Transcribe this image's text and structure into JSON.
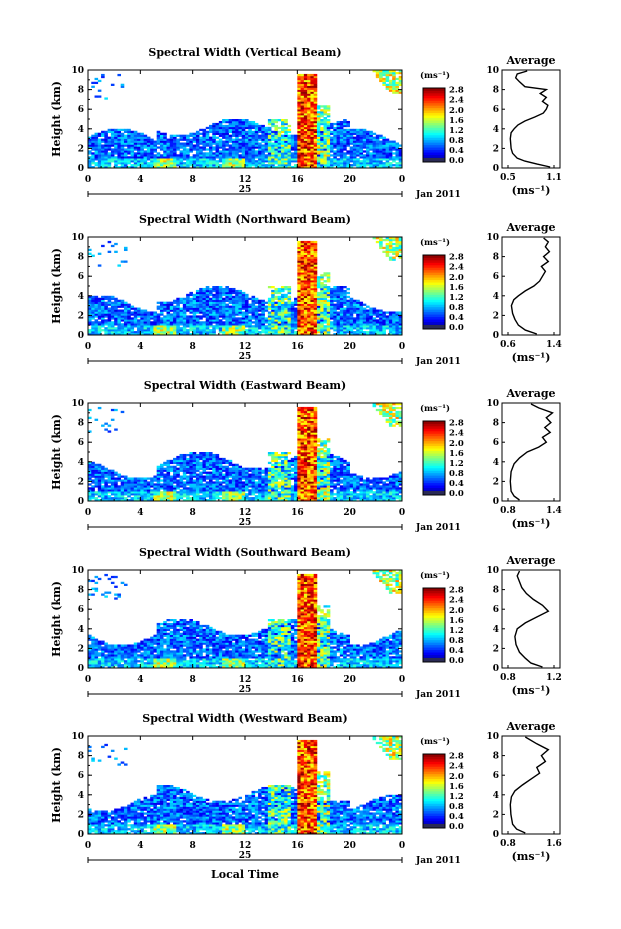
{
  "chart_data": [
    {
      "type": "heatmap",
      "title": "Spectral Width (Vertical Beam)",
      "ylabel": "Height (km)",
      "xticks": [
        "0",
        "4",
        "8",
        "12",
        "16",
        "20",
        "0"
      ],
      "yticks": [
        "0",
        "2",
        "4",
        "6",
        "8",
        "10"
      ],
      "ylim": [
        0,
        10
      ],
      "date_label": "25",
      "month_label": "Jan 2011",
      "colorbar": {
        "unit": "(ms⁻¹)",
        "ticks": [
          "0.0",
          "0.4",
          "0.8",
          "1.2",
          "1.6",
          "2.0",
          "2.4",
          "2.8"
        ]
      },
      "average": {
        "title": "Average",
        "xlabel": "(ms⁻¹)",
        "xticks": [
          "0.5",
          "1.1"
        ],
        "xlim": [
          0.5,
          1.1
        ],
        "yticks": [
          "0",
          "2",
          "4",
          "6",
          "8",
          "10"
        ],
        "profile": [
          [
            1.05,
            0.1
          ],
          [
            0.88,
            0.4
          ],
          [
            0.72,
            0.7
          ],
          [
            0.62,
            1.0
          ],
          [
            0.56,
            1.5
          ],
          [
            0.54,
            2.0
          ],
          [
            0.53,
            3.0
          ],
          [
            0.54,
            3.6
          ],
          [
            0.58,
            4.0
          ],
          [
            0.63,
            4.4
          ],
          [
            0.72,
            4.8
          ],
          [
            0.85,
            5.2
          ],
          [
            0.96,
            5.6
          ],
          [
            1.0,
            6.0
          ],
          [
            1.02,
            6.4
          ],
          [
            0.95,
            6.8
          ],
          [
            1.0,
            7.2
          ],
          [
            0.92,
            7.6
          ],
          [
            1.0,
            8.0
          ],
          [
            0.72,
            8.3
          ],
          [
            0.65,
            8.8
          ],
          [
            0.6,
            9.2
          ],
          [
            0.62,
            9.6
          ],
          [
            0.75,
            9.9
          ]
        ]
      }
    },
    {
      "type": "heatmap",
      "title": "Spectral Width (Northward Beam)",
      "ylabel": "Height (km)",
      "xticks": [
        "0",
        "4",
        "8",
        "12",
        "16",
        "20",
        "0"
      ],
      "yticks": [
        "0",
        "2",
        "4",
        "6",
        "8",
        "10"
      ],
      "ylim": [
        0,
        10
      ],
      "date_label": "25",
      "month_label": "Jan 2011",
      "colorbar": {
        "unit": "(ms⁻¹)",
        "ticks": [
          "0.0",
          "0.4",
          "0.8",
          "1.2",
          "1.6",
          "2.0",
          "2.4",
          "2.8"
        ]
      },
      "average": {
        "title": "Average",
        "xlabel": "(ms⁻¹)",
        "xticks": [
          "0.6",
          "1.4"
        ],
        "xlim": [
          0.6,
          1.4
        ],
        "yticks": [
          "0",
          "2",
          "4",
          "6",
          "8",
          "10"
        ],
        "profile": [
          [
            1.1,
            0.1
          ],
          [
            0.9,
            0.5
          ],
          [
            0.78,
            1.0
          ],
          [
            0.72,
            1.6
          ],
          [
            0.68,
            2.2
          ],
          [
            0.66,
            3.0
          ],
          [
            0.7,
            3.6
          ],
          [
            0.78,
            4.0
          ],
          [
            0.9,
            4.5
          ],
          [
            1.05,
            5.0
          ],
          [
            1.15,
            5.5
          ],
          [
            1.2,
            6.0
          ],
          [
            1.25,
            6.5
          ],
          [
            1.18,
            7.0
          ],
          [
            1.3,
            7.5
          ],
          [
            1.22,
            8.0
          ],
          [
            1.32,
            8.5
          ],
          [
            1.25,
            9.0
          ],
          [
            1.3,
            9.5
          ],
          [
            1.22,
            9.9
          ]
        ]
      }
    },
    {
      "type": "heatmap",
      "title": "Spectral Width (Eastward Beam)",
      "ylabel": "Height (km)",
      "xticks": [
        "0",
        "4",
        "8",
        "12",
        "16",
        "20",
        "0"
      ],
      "yticks": [
        "0",
        "2",
        "4",
        "6",
        "8",
        "10"
      ],
      "ylim": [
        0,
        10
      ],
      "date_label": "25",
      "month_label": "Jan 2011",
      "colorbar": {
        "unit": "(ms⁻¹)",
        "ticks": [
          "0.0",
          "0.4",
          "0.8",
          "1.2",
          "1.6",
          "2.0",
          "2.4",
          "2.8"
        ]
      },
      "average": {
        "title": "Average",
        "xlabel": "(ms⁻¹)",
        "xticks": [
          "0.8",
          "1.4"
        ],
        "xlim": [
          0.8,
          1.4
        ],
        "yticks": [
          "0",
          "2",
          "4",
          "6",
          "8",
          "10"
        ],
        "profile": [
          [
            0.95,
            0.1
          ],
          [
            0.88,
            0.5
          ],
          [
            0.84,
            1.0
          ],
          [
            0.83,
            2.0
          ],
          [
            0.84,
            3.0
          ],
          [
            0.88,
            3.8
          ],
          [
            0.95,
            4.4
          ],
          [
            1.05,
            5.0
          ],
          [
            1.2,
            5.5
          ],
          [
            1.3,
            6.0
          ],
          [
            1.25,
            6.5
          ],
          [
            1.35,
            7.0
          ],
          [
            1.28,
            7.5
          ],
          [
            1.36,
            8.0
          ],
          [
            1.3,
            8.5
          ],
          [
            1.38,
            9.0
          ],
          [
            1.2,
            9.5
          ],
          [
            1.1,
            9.9
          ]
        ]
      }
    },
    {
      "type": "heatmap",
      "title": "Spectral Width (Southward Beam)",
      "ylabel": "Height (km)",
      "xticks": [
        "0",
        "4",
        "8",
        "12",
        "16",
        "20",
        "0"
      ],
      "yticks": [
        "0",
        "2",
        "4",
        "6",
        "8",
        "10"
      ],
      "ylim": [
        0,
        10
      ],
      "date_label": "25",
      "month_label": "Jan 2011",
      "colorbar": {
        "unit": "(ms⁻¹)",
        "ticks": [
          "0.0",
          "0.4",
          "0.8",
          "1.2",
          "1.6",
          "2.0",
          "2.4",
          "2.8"
        ]
      },
      "average": {
        "title": "Average",
        "xlabel": "(ms⁻¹)",
        "xticks": [
          "0.8",
          "1.2"
        ],
        "xlim": [
          0.8,
          1.2
        ],
        "yticks": [
          "0",
          "2",
          "4",
          "6",
          "8",
          "10"
        ],
        "profile": [
          [
            1.1,
            0.1
          ],
          [
            1.0,
            0.5
          ],
          [
            0.95,
            1.0
          ],
          [
            0.9,
            1.6
          ],
          [
            0.87,
            2.4
          ],
          [
            0.86,
            3.2
          ],
          [
            0.88,
            4.0
          ],
          [
            0.95,
            4.6
          ],
          [
            1.05,
            5.2
          ],
          [
            1.15,
            5.8
          ],
          [
            1.1,
            6.4
          ],
          [
            1.02,
            7.0
          ],
          [
            0.96,
            7.6
          ],
          [
            0.92,
            8.2
          ],
          [
            0.9,
            8.8
          ],
          [
            0.88,
            9.4
          ],
          [
            0.9,
            9.9
          ]
        ]
      }
    },
    {
      "type": "heatmap",
      "title": "Spectral Width (Westward Beam)",
      "ylabel": "Height (km)",
      "xlabel": "Local Time",
      "xticks": [
        "0",
        "4",
        "8",
        "12",
        "16",
        "20",
        "0"
      ],
      "yticks": [
        "0",
        "2",
        "4",
        "6",
        "8",
        "10"
      ],
      "ylim": [
        0,
        10
      ],
      "date_label": "25",
      "month_label": "Jan 2011",
      "colorbar": {
        "unit": "(ms⁻¹)",
        "ticks": [
          "0.0",
          "0.4",
          "0.8",
          "1.2",
          "1.6",
          "2.0",
          "2.4",
          "2.8"
        ]
      },
      "average": {
        "title": "Average",
        "xlabel": "(ms⁻¹)",
        "xticks": [
          "0.8",
          "1.6"
        ],
        "xlim": [
          0.8,
          1.6
        ],
        "yticks": [
          "0",
          "2",
          "4",
          "6",
          "8",
          "10"
        ],
        "profile": [
          [
            1.1,
            0.1
          ],
          [
            0.95,
            0.5
          ],
          [
            0.88,
            1.0
          ],
          [
            0.85,
            2.0
          ],
          [
            0.84,
            3.0
          ],
          [
            0.86,
            3.8
          ],
          [
            0.92,
            4.4
          ],
          [
            1.05,
            5.0
          ],
          [
            1.2,
            5.6
          ],
          [
            1.35,
            6.2
          ],
          [
            1.3,
            6.8
          ],
          [
            1.45,
            7.4
          ],
          [
            1.38,
            8.0
          ],
          [
            1.5,
            8.6
          ],
          [
            1.3,
            9.2
          ],
          [
            1.1,
            9.9
          ]
        ]
      }
    }
  ]
}
